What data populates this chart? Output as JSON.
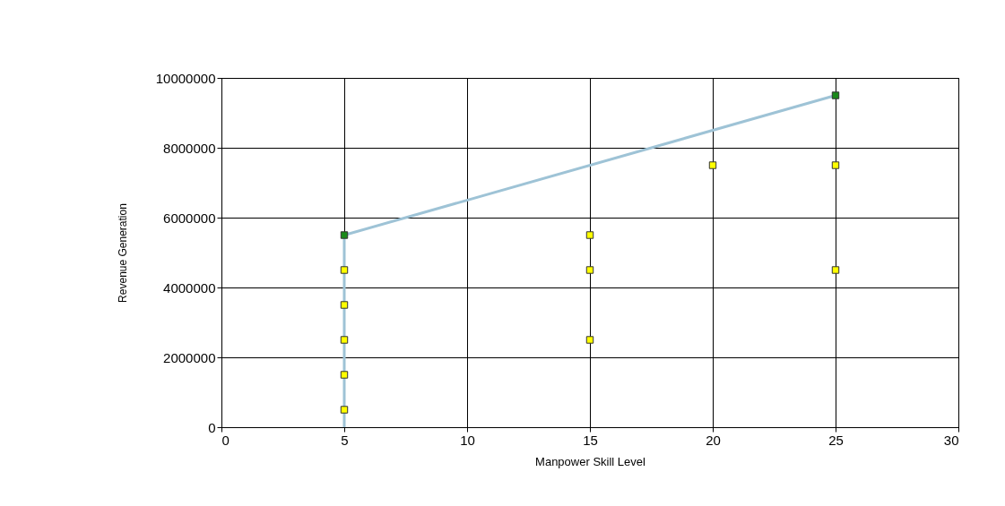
{
  "chart_data": {
    "type": "scatter",
    "xlabel": "Manpower Skill Level",
    "ylabel": "Revenue Generation",
    "xlim": [
      0,
      30
    ],
    "xticks": [
      0,
      5,
      10,
      15,
      20,
      25,
      30
    ],
    "ylim": [
      0,
      10000000
    ],
    "yticks": [
      0,
      2000000,
      4000000,
      6000000,
      8000000,
      10000000
    ],
    "grid": true,
    "marker": "square",
    "series": [
      {
        "type": "line",
        "marker": "none",
        "line_style": "solid",
        "color": "#9ec3d6",
        "x": [
          5,
          5,
          25
        ],
        "values": [
          0,
          5500000,
          9500000
        ]
      },
      {
        "color": "#ffff00",
        "x": [
          5,
          5,
          5,
          5,
          5,
          15,
          15,
          15,
          20,
          25,
          25
        ],
        "values": [
          500000,
          1500000,
          2500000,
          3500000,
          4500000,
          2500000,
          4500000,
          5500000,
          7500000,
          4500000,
          7500000
        ]
      },
      {
        "color": "#1a8a1a",
        "x": [
          5,
          25
        ],
        "values": [
          5500000,
          9500000
        ]
      }
    ]
  }
}
